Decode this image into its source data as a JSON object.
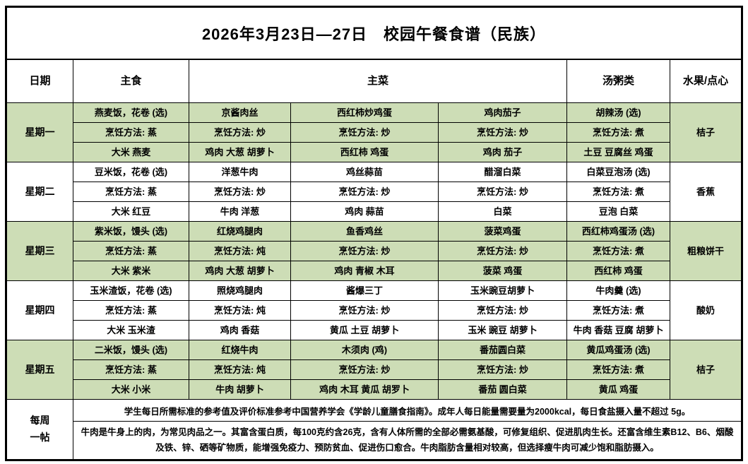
{
  "title": "2026年3月23日—27日　校园午餐食谱（民族）",
  "colors": {
    "row_green": "#cdddb6",
    "border": "#000000",
    "background": "#ffffff"
  },
  "header": {
    "date": "日期",
    "staple": "主食",
    "main_dishes": "主菜",
    "soup": "汤粥类",
    "fruit": "水果/点心"
  },
  "menu": {
    "days": [
      {
        "day": "星期一",
        "shaded": true,
        "columns": [
          {
            "dish": "燕麦饭，花卷 (选)",
            "method": "烹饪方法: 蒸",
            "ingredients": "大米 燕麦"
          },
          {
            "dish": "京酱肉丝",
            "method": "烹饪方法: 炒",
            "ingredients": "鸡肉 大葱 胡萝卜"
          },
          {
            "dish": "西红柿炒鸡蛋",
            "method": "烹饪方法: 炒",
            "ingredients": "西红柿 鸡蛋"
          },
          {
            "dish": "鸡肉茄子",
            "method": "烹饪方法: 炒",
            "ingredients": "鸡肉 茄子"
          },
          {
            "dish": "胡辣汤 (选)",
            "method": "烹饪方法: 煮",
            "ingredients": "土豆 豆腐丝 鸡蛋"
          }
        ],
        "fruit": "桔子"
      },
      {
        "day": "星期二",
        "shaded": false,
        "columns": [
          {
            "dish": "豆米饭，花卷 (选)",
            "method": "烹饪方法: 蒸",
            "ingredients": "大米 红豆"
          },
          {
            "dish": "洋葱牛肉",
            "method": "烹饪方法: 炒",
            "ingredients": "牛肉 洋葱"
          },
          {
            "dish": "鸡丝蒜苗",
            "method": "烹饪方法: 炒",
            "ingredients": "鸡肉 蒜苗"
          },
          {
            "dish": "醋溜白菜",
            "method": "烹饪方法: 炒",
            "ingredients": "白菜"
          },
          {
            "dish": "白菜豆泡汤 (选)",
            "method": "烹饪方法: 煮",
            "ingredients": "豆泡 白菜"
          }
        ],
        "fruit": "香蕉"
      },
      {
        "day": "星期三",
        "shaded": true,
        "columns": [
          {
            "dish": "紫米饭，馒头 (选)",
            "method": "烹饪方法: 蒸",
            "ingredients": "大米 紫米"
          },
          {
            "dish": "红烧鸡腿肉",
            "method": "烹饪方法: 炖",
            "ingredients": "鸡肉 大葱 胡萝卜"
          },
          {
            "dish": "鱼香鸡丝",
            "method": "烹饪方法: 炒",
            "ingredients": "鸡肉 青椒 木耳"
          },
          {
            "dish": "菠菜鸡蛋",
            "method": "烹饪方法: 炒",
            "ingredients": "菠菜 鸡蛋"
          },
          {
            "dish": "西红柿鸡蛋汤 (选)",
            "method": "烹饪方法: 煮",
            "ingredients": "西红柿 鸡蛋"
          }
        ],
        "fruit": "粗粮饼干"
      },
      {
        "day": "星期四",
        "shaded": false,
        "columns": [
          {
            "dish": "玉米渣饭，花卷 (选)",
            "method": "烹饪方法: 蒸",
            "ingredients": "大米 玉米渣"
          },
          {
            "dish": "照烧鸡腿肉",
            "method": "烹饪方法: 炖",
            "ingredients": "鸡肉 香菇"
          },
          {
            "dish": "酱爆三丁",
            "method": "烹饪方法: 炒",
            "ingredients": "黄瓜 土豆 胡萝卜"
          },
          {
            "dish": "玉米豌豆胡萝卜",
            "method": "烹饪方法: 炒",
            "ingredients": "玉米 豌豆 胡萝卜"
          },
          {
            "dish": "牛肉羹 (选)",
            "method": "烹饪方法: 煮",
            "ingredients": "牛肉 香菇 豆腐 胡萝卜"
          }
        ],
        "fruit": "酸奶"
      },
      {
        "day": "星期五",
        "shaded": true,
        "columns": [
          {
            "dish": "二米饭，馒头 (选)",
            "method": "烹饪方法: 蒸",
            "ingredients": "大米 小米"
          },
          {
            "dish": "红烧牛肉",
            "method": "烹饪方法: 炖",
            "ingredients": "牛肉 胡萝卜"
          },
          {
            "dish": "木须肉 (鸡)",
            "method": "烹饪方法: 炒",
            "ingredients": "鸡肉 木耳 黄瓜 胡罗卜"
          },
          {
            "dish": "番茄圆白菜",
            "method": "烹饪方法: 炒",
            "ingredients": "番茄 圆白菜"
          },
          {
            "dish": "黄瓜鸡蛋汤 (选)",
            "method": "烹饪方法: 煮",
            "ingredients": "黄瓜 鸡蛋"
          }
        ],
        "fruit": "桔子"
      }
    ]
  },
  "notes": {
    "label_line1": "每周",
    "label_line2": "一帖",
    "line1": "学生每日所需标准的参考值及评价标准参考中国营养学会《学龄儿童膳食指南》。成年人每日能量需要量为2000kcal，每日食盐摄入量不超过 5g。",
    "line2": "牛肉是牛身上的肉，为常见肉品之一。其富含蛋白质，每100克约含26克，含有人体所需的全部必需氨基酸，可修复组织、促进肌肉生长。还富含维生素B12、B6、烟酸及铁、锌、硒等矿物质，能增强免疫力、预防贫血、促进伤口愈合。牛肉脂肪含量相对较高，但选择瘦牛肉可减少饱和脂肪摄入。"
  }
}
